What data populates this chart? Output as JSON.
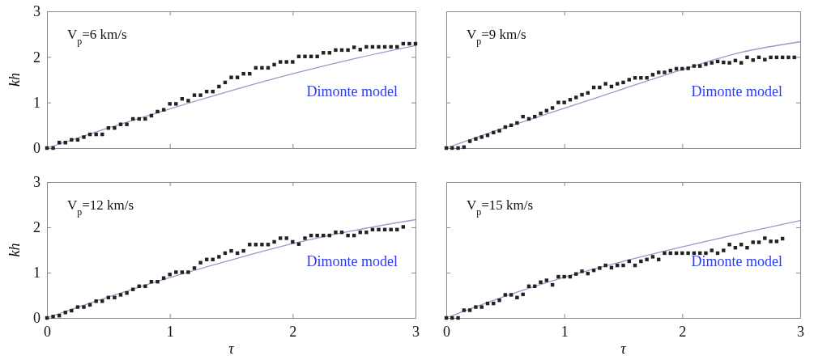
{
  "chart_data": [
    {
      "type": "scatter",
      "title": "V$_{p}$=6 km/s",
      "ylabel": "kh",
      "annotations": [
        "Dimonte model"
      ],
      "xlim": [
        0,
        3
      ],
      "ylim": [
        0,
        3
      ],
      "xticks": [
        0,
        1,
        2,
        3
      ],
      "yticks": [
        0,
        1,
        2,
        3
      ],
      "tick_labels": "y",
      "grid": false,
      "series": [
        {
          "marker": "square",
          "color": "#222222",
          "x": [
            0,
            0.05,
            0.1,
            0.15,
            0.2,
            0.25,
            0.3,
            0.35,
            0.4,
            0.45,
            0.5,
            0.55,
            0.6,
            0.65,
            0.7,
            0.75,
            0.8,
            0.85,
            0.9,
            0.95,
            1,
            1.05,
            1.1,
            1.15,
            1.2,
            1.25,
            1.3,
            1.35,
            1.4,
            1.45,
            1.5,
            1.55,
            1.6,
            1.65,
            1.7,
            1.75,
            1.8,
            1.85,
            1.9,
            1.95,
            2,
            2.05,
            2.1,
            2.15,
            2.2,
            2.25,
            2.3,
            2.35,
            2.4,
            2.45,
            2.5,
            2.55,
            2.6,
            2.65,
            2.7,
            2.75,
            2.8,
            2.85,
            2.9,
            2.95,
            3
          ],
          "values": [
            0,
            0,
            0.12,
            0.12,
            0.18,
            0.18,
            0.24,
            0.3,
            0.3,
            0.3,
            0.44,
            0.44,
            0.52,
            0.52,
            0.64,
            0.64,
            0.64,
            0.71,
            0.8,
            0.84,
            0.97,
            0.97,
            1.08,
            1.04,
            1.16,
            1.16,
            1.24,
            1.24,
            1.35,
            1.44,
            1.55,
            1.55,
            1.63,
            1.63,
            1.76,
            1.76,
            1.76,
            1.83,
            1.89,
            1.89,
            1.89,
            2.01,
            2.01,
            2.01,
            2.01,
            2.09,
            2.09,
            2.15,
            2.15,
            2.15,
            2.21,
            2.16,
            2.22,
            2.22,
            2.22,
            2.22,
            2.22,
            2.22,
            2.29,
            2.29,
            2.29
          ]
        },
        {
          "type": "line",
          "color": "#9a9ac8",
          "line_style": "solid",
          "x": [
            0,
            0.5,
            1,
            1.5,
            2,
            2.5,
            3
          ],
          "values": [
            0,
            0.44,
            0.86,
            1.26,
            1.63,
            1.96,
            2.25
          ]
        }
      ]
    },
    {
      "type": "scatter",
      "title": "V$_{p}$=9 km/s",
      "annotations": [
        "Dimonte model"
      ],
      "xlim": [
        0,
        3
      ],
      "ylim": [
        0,
        3
      ],
      "xticks": [
        0,
        1,
        2,
        3
      ],
      "yticks": [
        0,
        1,
        2,
        3
      ],
      "tick_labels": false,
      "grid": false,
      "series": [
        {
          "marker": "square",
          "color": "#222222",
          "x": [
            0,
            0.05,
            0.1,
            0.15,
            0.2,
            0.25,
            0.3,
            0.35,
            0.4,
            0.45,
            0.5,
            0.55,
            0.6,
            0.65,
            0.7,
            0.75,
            0.8,
            0.85,
            0.9,
            0.95,
            1,
            1.05,
            1.1,
            1.15,
            1.2,
            1.25,
            1.3,
            1.35,
            1.4,
            1.45,
            1.5,
            1.55,
            1.6,
            1.65,
            1.7,
            1.75,
            1.8,
            1.85,
            1.9,
            1.95,
            2,
            2.05,
            2.1,
            2.15,
            2.2,
            2.25,
            2.3,
            2.35,
            2.4,
            2.45,
            2.5,
            2.55,
            2.6,
            2.65,
            2.7,
            2.75,
            2.8,
            2.85,
            2.9,
            2.95
          ],
          "values": [
            0,
            0,
            0,
            0.02,
            0.15,
            0.2,
            0.24,
            0.28,
            0.34,
            0.38,
            0.46,
            0.5,
            0.55,
            0.69,
            0.64,
            0.69,
            0.76,
            0.82,
            0.88,
            1,
            1,
            1.06,
            1.11,
            1.17,
            1.21,
            1.33,
            1.33,
            1.41,
            1.35,
            1.41,
            1.44,
            1.5,
            1.54,
            1.54,
            1.54,
            1.61,
            1.66,
            1.66,
            1.7,
            1.74,
            1.74,
            1.75,
            1.8,
            1.8,
            1.84,
            1.87,
            1.9,
            1.88,
            1.87,
            1.92,
            1.87,
            1.99,
            1.93,
            1.99,
            1.94,
            1.99,
            1.99,
            1.99,
            1.99,
            1.99
          ]
        },
        {
          "type": "line",
          "color": "#9a9ac8",
          "line_style": "solid",
          "x": [
            0,
            0.5,
            1,
            1.5,
            2,
            2.5,
            3
          ],
          "values": [
            0,
            0.45,
            0.87,
            1.3,
            1.72,
            2.1,
            2.33
          ]
        }
      ]
    },
    {
      "type": "scatter",
      "title": "V$_{p}$=12 km/s",
      "xlabel": "τ",
      "ylabel": "kh",
      "annotations": [
        "Dimonte model"
      ],
      "xlim": [
        0,
        3
      ],
      "ylim": [
        0,
        3
      ],
      "xticks": [
        0,
        1,
        2,
        3
      ],
      "yticks": [
        0,
        1,
        2,
        3
      ],
      "grid": false,
      "series": [
        {
          "marker": "square",
          "color": "#222222",
          "x": [
            0,
            0.05,
            0.1,
            0.15,
            0.2,
            0.25,
            0.3,
            0.35,
            0.4,
            0.45,
            0.5,
            0.55,
            0.6,
            0.65,
            0.7,
            0.75,
            0.8,
            0.85,
            0.9,
            0.95,
            1,
            1.05,
            1.1,
            1.15,
            1.2,
            1.25,
            1.3,
            1.35,
            1.4,
            1.45,
            1.5,
            1.55,
            1.6,
            1.65,
            1.7,
            1.75,
            1.8,
            1.85,
            1.9,
            1.95,
            2,
            2.05,
            2.1,
            2.15,
            2.2,
            2.25,
            2.3,
            2.35,
            2.4,
            2.45,
            2.5,
            2.55,
            2.6,
            2.65,
            2.7,
            2.75,
            2.8,
            2.85,
            2.9
          ],
          "values": [
            0,
            0.03,
            0.05,
            0.12,
            0.16,
            0.24,
            0.24,
            0.29,
            0.37,
            0.37,
            0.45,
            0.45,
            0.51,
            0.55,
            0.63,
            0.7,
            0.7,
            0.8,
            0.8,
            0.88,
            0.96,
            1.01,
            1.01,
            1.01,
            1.1,
            1.22,
            1.29,
            1.29,
            1.35,
            1.43,
            1.48,
            1.43,
            1.48,
            1.62,
            1.62,
            1.62,
            1.62,
            1.68,
            1.76,
            1.76,
            1.68,
            1.63,
            1.76,
            1.82,
            1.82,
            1.82,
            1.82,
            1.89,
            1.89,
            1.82,
            1.82,
            1.89,
            1.89,
            1.95,
            1.95,
            1.95,
            1.95,
            1.95,
            2.01
          ]
        },
        {
          "type": "line",
          "color": "#9a9ac8",
          "line_style": "solid",
          "x": [
            0,
            0.5,
            1,
            1.5,
            2,
            2.5,
            3
          ],
          "values": [
            0,
            0.46,
            0.89,
            1.28,
            1.64,
            1.93,
            2.17
          ]
        }
      ]
    },
    {
      "type": "scatter",
      "title": "V$_{p}$=15 km/s",
      "xlabel": "τ",
      "annotations": [
        "Dimonte model"
      ],
      "xlim": [
        0,
        3
      ],
      "ylim": [
        0,
        3
      ],
      "xticks": [
        0,
        1,
        2,
        3
      ],
      "yticks": [
        0,
        1,
        2,
        3
      ],
      "tick_labels": "x",
      "grid": false,
      "series": [
        {
          "marker": "square",
          "color": "#222222",
          "x": [
            0,
            0.05,
            0.1,
            0.15,
            0.2,
            0.25,
            0.3,
            0.35,
            0.4,
            0.45,
            0.5,
            0.55,
            0.6,
            0.65,
            0.7,
            0.75,
            0.8,
            0.85,
            0.9,
            0.95,
            1,
            1.05,
            1.1,
            1.15,
            1.2,
            1.25,
            1.3,
            1.35,
            1.4,
            1.45,
            1.5,
            1.55,
            1.6,
            1.65,
            1.7,
            1.75,
            1.8,
            1.85,
            1.9,
            1.95,
            2,
            2.05,
            2.1,
            2.15,
            2.2,
            2.25,
            2.3,
            2.35,
            2.4,
            2.45,
            2.5,
            2.55,
            2.6,
            2.65,
            2.7,
            2.75,
            2.8,
            2.85
          ],
          "values": [
            0,
            0,
            0,
            0.17,
            0.17,
            0.24,
            0.24,
            0.32,
            0.32,
            0.39,
            0.51,
            0.51,
            0.45,
            0.52,
            0.7,
            0.7,
            0.79,
            0.83,
            0.73,
            0.91,
            0.91,
            0.91,
            0.97,
            1.03,
            0.98,
            1.05,
            1.1,
            1.16,
            1.11,
            1.16,
            1.16,
            1.25,
            1.16,
            1.25,
            1.29,
            1.35,
            1.29,
            1.43,
            1.43,
            1.43,
            1.43,
            1.43,
            1.43,
            1.43,
            1.43,
            1.49,
            1.43,
            1.49,
            1.62,
            1.55,
            1.62,
            1.55,
            1.67,
            1.67,
            1.76,
            1.69,
            1.69,
            1.75
          ]
        },
        {
          "type": "line",
          "color": "#9a9ac8",
          "line_style": "solid",
          "x": [
            0,
            0.5,
            1,
            1.5,
            2,
            2.5,
            3
          ],
          "values": [
            0,
            0.48,
            0.9,
            1.25,
            1.57,
            1.87,
            2.15
          ]
        }
      ]
    }
  ]
}
